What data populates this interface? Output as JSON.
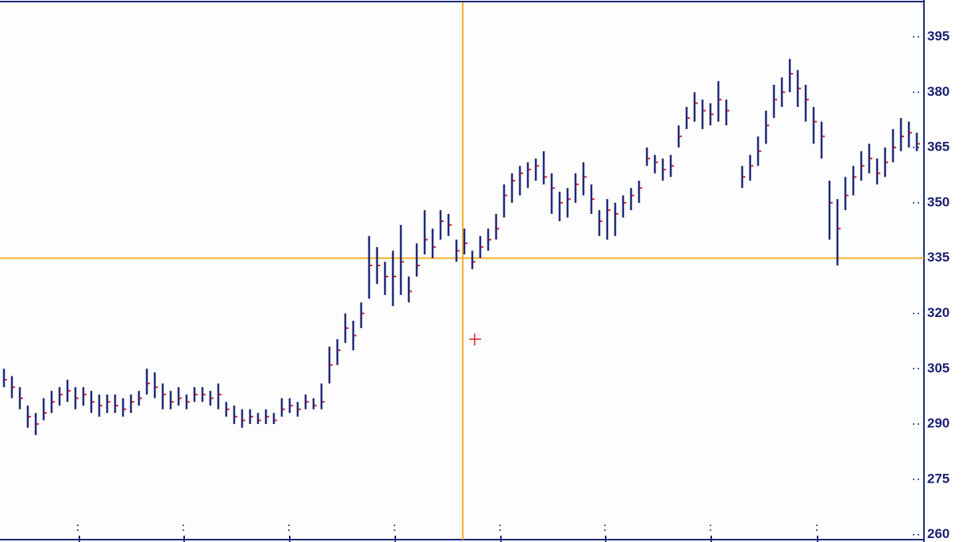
{
  "chart_data": {
    "type": "ohlc",
    "bar_color": "#1f2a78",
    "close_color": "#e0202a",
    "ylim": [
      258,
      405
    ],
    "yticks": [
      260,
      275,
      290,
      305,
      320,
      335,
      350,
      365,
      380,
      395
    ],
    "crosshair": {
      "y": 335,
      "color": "#f5b12e"
    },
    "high": [
      305,
      303,
      300,
      295,
      293,
      297,
      299,
      300,
      302,
      300,
      300,
      299,
      298,
      298,
      298,
      297,
      298,
      299,
      305,
      304,
      301,
      299,
      300,
      298,
      300,
      300,
      299,
      301,
      296,
      295,
      294,
      294,
      293,
      294,
      293,
      297,
      297,
      296,
      298,
      297,
      301,
      311,
      313,
      320,
      318,
      323,
      341,
      338,
      334,
      337,
      344,
      330,
      339,
      348,
      343,
      348,
      347,
      340,
      343,
      337,
      341,
      343,
      347,
      355,
      358,
      360,
      361,
      362,
      364,
      358,
      353,
      354,
      358,
      361,
      355,
      348,
      351,
      350,
      352,
      354,
      356,
      365,
      363,
      362,
      363,
      371,
      376,
      380,
      378,
      377,
      383,
      378,
      null,
      360,
      363,
      368,
      375,
      382,
      384,
      389,
      386,
      382,
      376,
      372,
      356,
      351,
      357,
      360,
      364,
      366,
      362,
      365,
      370,
      373,
      372,
      369
    ],
    "low": [
      300,
      297,
      294,
      289,
      287,
      291,
      293,
      295,
      296,
      294,
      295,
      293,
      292,
      293,
      293,
      292,
      293,
      295,
      298,
      297,
      294,
      294,
      295,
      294,
      296,
      296,
      295,
      294,
      292,
      290,
      289,
      290,
      290,
      290,
      290,
      292,
      293,
      292,
      294,
      294,
      294,
      301,
      306,
      312,
      310,
      316,
      324,
      328,
      325,
      322,
      325,
      323,
      330,
      336,
      335,
      340,
      341,
      334,
      336,
      332,
      335,
      337,
      340,
      346,
      350,
      352,
      354,
      356,
      355,
      347,
      345,
      346,
      350,
      352,
      347,
      341,
      340,
      341,
      346,
      348,
      350,
      360,
      358,
      356,
      357,
      365,
      370,
      372,
      370,
      371,
      372,
      371,
      null,
      354,
      356,
      360,
      366,
      373,
      376,
      380,
      376,
      372,
      366,
      362,
      340,
      333,
      348,
      352,
      356,
      358,
      355,
      357,
      361,
      364,
      365,
      364
    ],
    "close": [
      302,
      300,
      297,
      292,
      290,
      293,
      296,
      298,
      299,
      297,
      298,
      296,
      295,
      296,
      295,
      294,
      296,
      297,
      301,
      300,
      298,
      296,
      297,
      296,
      298,
      298,
      297,
      298,
      294,
      292,
      291,
      292,
      291,
      292,
      291,
      294,
      295,
      294,
      296,
      295,
      296,
      306,
      310,
      316,
      314,
      320,
      333,
      333,
      330,
      330,
      334,
      326,
      333,
      340,
      338,
      345,
      344,
      337,
      339,
      334,
      338,
      340,
      343,
      352,
      356,
      358,
      359,
      360,
      357,
      354,
      350,
      351,
      355,
      357,
      351,
      345,
      348,
      347,
      350,
      352,
      354,
      362,
      361,
      359,
      360,
      368,
      373,
      377,
      375,
      374,
      378,
      375,
      null,
      357,
      360,
      364,
      371,
      378,
      380,
      385,
      381,
      378,
      372,
      368,
      350,
      343,
      352,
      357,
      360,
      362,
      358,
      361,
      365,
      368,
      369,
      366
    ]
  }
}
